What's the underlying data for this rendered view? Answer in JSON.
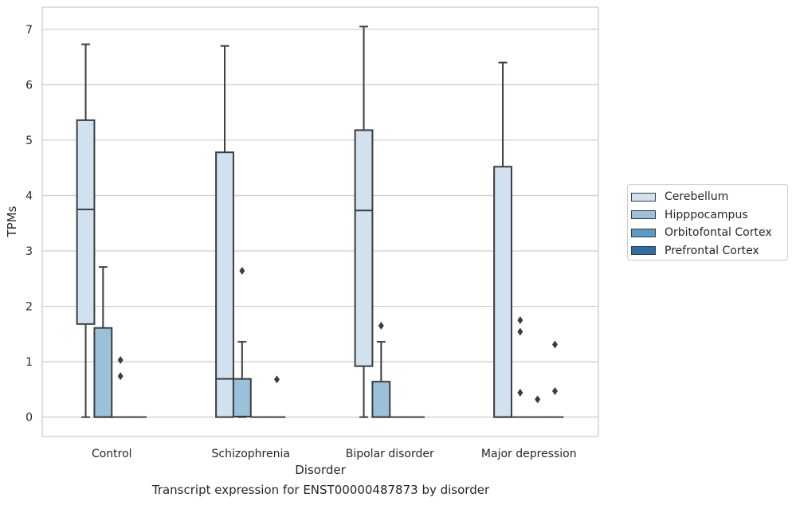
{
  "caption": "Transcript expression for ENST00000487873 by disorder",
  "chart_data": {
    "type": "box",
    "xlabel": "Disorder",
    "ylabel": "TPMs",
    "ylim": [
      -0.35,
      7.4
    ],
    "yticks": [
      0,
      1,
      2,
      3,
      4,
      5,
      6,
      7
    ],
    "grid": "horizontal",
    "legend_position": "right",
    "categories": [
      "Control",
      "Schizophrenia",
      "Bipolar disorder",
      "Major depression"
    ],
    "series": [
      {
        "name": "Cerebellum",
        "color": "#d2e1ef",
        "boxes": [
          {
            "q1": 1.68,
            "median": 3.75,
            "q3": 5.36,
            "whisker_low": 0.0,
            "whisker_high": 6.73,
            "outliers": []
          },
          {
            "q1": 0.0,
            "median": 0.69,
            "q3": 4.78,
            "whisker_low": 0.0,
            "whisker_high": 6.7,
            "outliers": []
          },
          {
            "q1": 0.92,
            "median": 3.73,
            "q3": 5.18,
            "whisker_low": 0.0,
            "whisker_high": 7.05,
            "outliers": []
          },
          {
            "q1": 0.0,
            "median": 0.0,
            "q3": 4.52,
            "whisker_low": 0.0,
            "whisker_high": 6.4,
            "outliers": []
          }
        ]
      },
      {
        "name": "Hipppocampus",
        "color": "#9ac1d9",
        "boxes": [
          {
            "q1": 0.0,
            "median": 0.0,
            "q3": 1.61,
            "whisker_low": 0.0,
            "whisker_high": 2.71,
            "outliers": []
          },
          {
            "q1": 0.01,
            "median": 0.01,
            "q3": 0.69,
            "whisker_low": 0.0,
            "whisker_high": 1.36,
            "outliers": [
              2.64
            ]
          },
          {
            "q1": 0.0,
            "median": 0.0,
            "q3": 0.64,
            "whisker_low": 0.0,
            "whisker_high": 1.36,
            "outliers": [
              1.65
            ]
          },
          {
            "q1": 0.0,
            "median": 0.0,
            "q3": 0.0,
            "whisker_low": 0.0,
            "whisker_high": 0.0,
            "outliers": [
              1.75,
              1.54,
              0.44
            ]
          }
        ]
      },
      {
        "name": "Orbitofontal Cortex",
        "color": "#5b9cc7",
        "boxes": [
          {
            "q1": 0.0,
            "median": 0.0,
            "q3": 0.0,
            "whisker_low": 0.0,
            "whisker_high": 0.0,
            "outliers": [
              1.03,
              0.74
            ]
          },
          {
            "q1": 0.0,
            "median": 0.0,
            "q3": 0.0,
            "whisker_low": 0.0,
            "whisker_high": 0.0,
            "outliers": []
          },
          {
            "q1": 0.0,
            "median": 0.0,
            "q3": 0.0,
            "whisker_low": 0.0,
            "whisker_high": 0.0,
            "outliers": []
          },
          {
            "q1": 0.0,
            "median": 0.0,
            "q3": 0.0,
            "whisker_low": 0.0,
            "whisker_high": 0.0,
            "outliers": [
              0.32
            ]
          }
        ]
      },
      {
        "name": "Prefrontal Cortex",
        "color": "#2c6ea8",
        "boxes": [
          {
            "q1": 0.0,
            "median": 0.0,
            "q3": 0.0,
            "whisker_low": 0.0,
            "whisker_high": 0.0,
            "outliers": []
          },
          {
            "q1": 0.0,
            "median": 0.0,
            "q3": 0.0,
            "whisker_low": 0.0,
            "whisker_high": 0.0,
            "outliers": [
              0.68
            ]
          },
          {
            "q1": 0.0,
            "median": 0.0,
            "q3": 0.0,
            "whisker_low": 0.0,
            "whisker_high": 0.0,
            "outliers": []
          },
          {
            "q1": 0.0,
            "median": 0.0,
            "q3": 0.0,
            "whisker_low": 0.0,
            "whisker_high": 0.0,
            "outliers": [
              1.31,
              0.47
            ]
          }
        ]
      }
    ]
  }
}
